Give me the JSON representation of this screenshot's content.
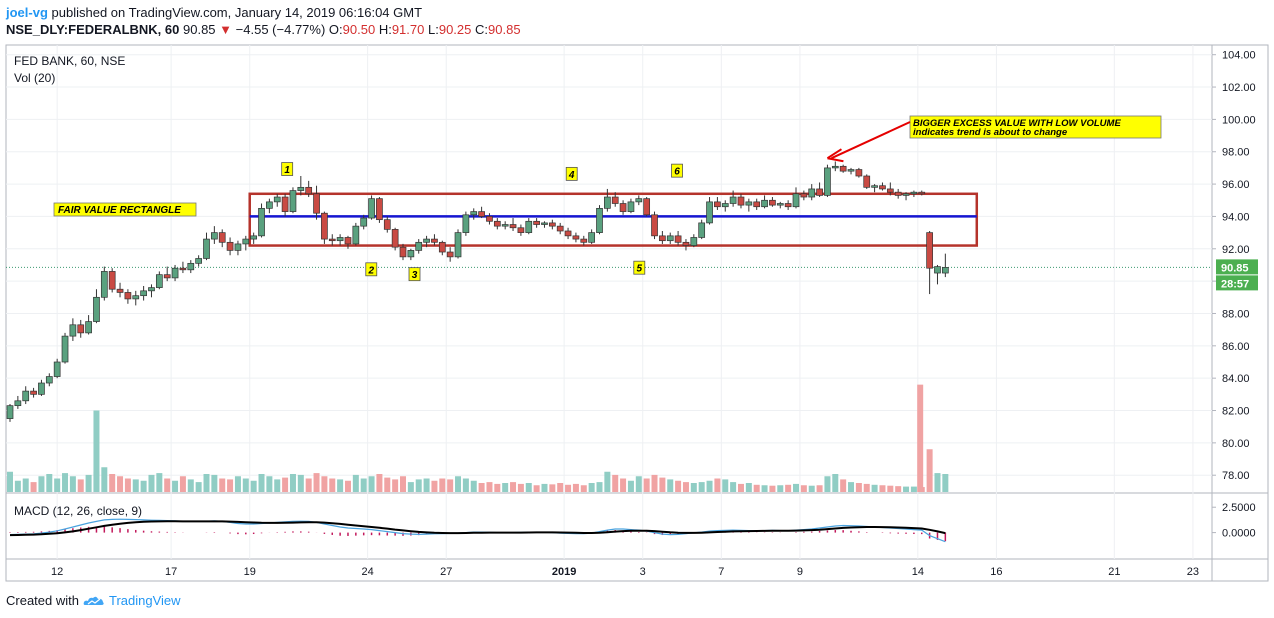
{
  "header": {
    "author": "joel-vg",
    "published_text": "published on TradingView.com, January 14, 2019 06:16:04 GMT",
    "symbol": "NSE_DLY:FEDERALBNK, 60",
    "last": "90.85",
    "change_arrow": "▼",
    "change": "−4.55 (−4.77%)",
    "o_label": "O:",
    "o_value": "90.50",
    "h_label": "H:",
    "h_value": "91.70",
    "l_label": "L:",
    "l_value": "90.25",
    "c_label": "C:",
    "c_value": "90.85"
  },
  "pane": {
    "title": "FED BANK, 60, NSE",
    "vol_label": "Vol (20)",
    "macd_label": "MACD (12, 26, close, 9)",
    "price_badge": "90.85",
    "timer_badge": "28:57"
  },
  "footer": {
    "created_with": "Created with",
    "brand": "TradingView",
    "logo_icon": "tradingview-cloud-icon"
  },
  "annotations": {
    "fair_value": "FAIR VALUE RECTANGLE",
    "callout_line1": "BIGGER EXCESS VALUE WITH LOW VOLUME",
    "callout_line2": "indicates trend is about to change",
    "markers": [
      {
        "label": "1",
        "x": 35.2,
        "y": 96.9
      },
      {
        "label": "2",
        "x": 45.9,
        "y": 90.7
      },
      {
        "label": "3",
        "x": 51.4,
        "y": 90.4
      },
      {
        "label": "4",
        "x": 71.4,
        "y": 96.6
      },
      {
        "label": "5",
        "x": 80.0,
        "y": 90.8
      },
      {
        "label": "6",
        "x": 84.8,
        "y": 96.8
      }
    ]
  },
  "colors": {
    "up": "#5aa17f",
    "down": "#c94a43",
    "vol_up": "#90cdc4",
    "vol_down": "#f0a3a3",
    "rect": "#b5332b",
    "blue_line": "#1515d1",
    "macd_line": "#4aa3df",
    "signal_line": "#000000",
    "hist": "#c2185b",
    "badge": "#4caf50",
    "note_bg": "#ffff00"
  },
  "chart_data": {
    "type": "candlestick",
    "price_ticks": [
      "104.00",
      "102.00",
      "100.00",
      "98.00",
      "96.00",
      "94.00",
      "92.00",
      "90.00",
      "88.00",
      "86.00",
      "84.00",
      "82.00",
      "80.00",
      "78.00"
    ],
    "macd_ticks": [
      "2.5000",
      "0.0000"
    ],
    "x_labels": [
      {
        "t": "12",
        "x": 6
      },
      {
        "t": "17",
        "x": 20.5
      },
      {
        "t": "19",
        "x": 30.5
      },
      {
        "t": "24",
        "x": 45.5
      },
      {
        "t": "27",
        "x": 55.5
      },
      {
        "t": "2019",
        "x": 70.5,
        "bold": true
      },
      {
        "t": "3",
        "x": 80.5
      },
      {
        "t": "7",
        "x": 90.5
      },
      {
        "t": "9",
        "x": 100.5
      },
      {
        "t": "14",
        "x": 115.5
      },
      {
        "t": "16",
        "x": 125.5
      },
      {
        "t": "21",
        "x": 140.5
      },
      {
        "t": "23",
        "x": 150.5
      }
    ],
    "ylim_price": [
      76.9,
      104.6
    ],
    "ylim_macd": [
      -2.6,
      3.9
    ],
    "rectangle": {
      "x1": 30.5,
      "x2": 123.0,
      "y1": 92.2,
      "y2": 95.4
    },
    "fair_value_line": 94.0,
    "last_price": 90.85,
    "callout_target": {
      "x": 104.0,
      "y": 97.6
    },
    "candles": [
      [
        81.5,
        82.4,
        81.3,
        82.3
      ],
      [
        82.3,
        82.9,
        82.1,
        82.6
      ],
      [
        82.6,
        83.5,
        82.4,
        83.2
      ],
      [
        83.2,
        83.4,
        82.8,
        83.0
      ],
      [
        83.0,
        83.9,
        82.9,
        83.7
      ],
      [
        83.7,
        84.3,
        83.5,
        84.1
      ],
      [
        84.1,
        85.2,
        84.0,
        85.0
      ],
      [
        85.0,
        86.8,
        84.9,
        86.6
      ],
      [
        86.6,
        87.7,
        86.3,
        87.3
      ],
      [
        87.3,
        87.6,
        86.5,
        86.8
      ],
      [
        86.8,
        87.9,
        86.7,
        87.5
      ],
      [
        87.5,
        89.5,
        87.4,
        89.0
      ],
      [
        89.0,
        90.9,
        88.8,
        90.6
      ],
      [
        90.6,
        90.8,
        89.3,
        89.5
      ],
      [
        89.5,
        89.9,
        89.0,
        89.3
      ],
      [
        89.3,
        89.5,
        88.6,
        88.9
      ],
      [
        88.9,
        89.4,
        88.5,
        89.1
      ],
      [
        89.1,
        89.7,
        88.8,
        89.4
      ],
      [
        89.4,
        89.8,
        89.0,
        89.6
      ],
      [
        89.6,
        90.6,
        89.5,
        90.4
      ],
      [
        90.4,
        90.9,
        90.0,
        90.2
      ],
      [
        90.2,
        91.0,
        90.0,
        90.8
      ],
      [
        90.8,
        91.2,
        90.5,
        90.7
      ],
      [
        90.7,
        91.3,
        90.5,
        91.1
      ],
      [
        91.1,
        91.6,
        90.9,
        91.4
      ],
      [
        91.4,
        93.0,
        91.3,
        92.6
      ],
      [
        92.6,
        93.4,
        92.3,
        93.0
      ],
      [
        93.0,
        93.2,
        92.1,
        92.4
      ],
      [
        92.4,
        92.7,
        91.6,
        91.9
      ],
      [
        91.9,
        92.5,
        91.6,
        92.3
      ],
      [
        92.3,
        92.8,
        91.9,
        92.6
      ],
      [
        92.6,
        93.0,
        92.3,
        92.8
      ],
      [
        92.8,
        94.8,
        92.7,
        94.5
      ],
      [
        94.5,
        95.1,
        94.2,
        94.9
      ],
      [
        94.9,
        95.4,
        94.6,
        95.2
      ],
      [
        95.2,
        95.4,
        94.0,
        94.3
      ],
      [
        94.3,
        95.8,
        94.2,
        95.6
      ],
      [
        95.6,
        96.5,
        95.3,
        95.8
      ],
      [
        95.8,
        96.2,
        95.2,
        95.4
      ],
      [
        95.4,
        95.9,
        93.8,
        94.2
      ],
      [
        94.2,
        94.3,
        92.3,
        92.6
      ],
      [
        92.6,
        92.9,
        92.2,
        92.5
      ],
      [
        92.5,
        92.9,
        92.2,
        92.7
      ],
      [
        92.7,
        92.8,
        92.0,
        92.3
      ],
      [
        92.3,
        93.6,
        92.2,
        93.4
      ],
      [
        93.4,
        94.1,
        93.2,
        93.9
      ],
      [
        93.9,
        95.3,
        93.8,
        95.1
      ],
      [
        95.1,
        95.2,
        93.6,
        93.8
      ],
      [
        93.8,
        94.0,
        93.0,
        93.2
      ],
      [
        93.2,
        93.3,
        91.9,
        92.1
      ],
      [
        92.1,
        92.3,
        91.3,
        91.5
      ],
      [
        91.5,
        92.0,
        91.3,
        91.9
      ],
      [
        91.9,
        92.6,
        91.7,
        92.4
      ],
      [
        92.4,
        92.8,
        92.1,
        92.6
      ],
      [
        92.6,
        92.9,
        92.2,
        92.4
      ],
      [
        92.4,
        92.5,
        91.6,
        91.8
      ],
      [
        91.8,
        92.1,
        91.2,
        91.5
      ],
      [
        91.5,
        93.2,
        91.4,
        93.0
      ],
      [
        93.0,
        94.3,
        92.8,
        94.1
      ],
      [
        94.1,
        94.5,
        93.8,
        94.3
      ],
      [
        94.3,
        94.6,
        93.9,
        94.0
      ],
      [
        94.0,
        94.2,
        93.5,
        93.7
      ],
      [
        93.7,
        93.9,
        93.2,
        93.4
      ],
      [
        93.4,
        93.7,
        93.2,
        93.5
      ],
      [
        93.5,
        93.9,
        93.1,
        93.3
      ],
      [
        93.3,
        93.5,
        92.8,
        93.0
      ],
      [
        93.0,
        93.9,
        92.9,
        93.7
      ],
      [
        93.7,
        93.9,
        93.3,
        93.5
      ],
      [
        93.5,
        93.7,
        93.3,
        93.6
      ],
      [
        93.6,
        93.8,
        93.2,
        93.4
      ],
      [
        93.4,
        93.6,
        92.9,
        93.1
      ],
      [
        93.1,
        93.3,
        92.6,
        92.8
      ],
      [
        92.8,
        93.0,
        92.4,
        92.6
      ],
      [
        92.6,
        92.8,
        92.2,
        92.4
      ],
      [
        92.4,
        93.2,
        92.3,
        93.0
      ],
      [
        93.0,
        94.7,
        92.9,
        94.5
      ],
      [
        94.5,
        95.7,
        94.3,
        95.2
      ],
      [
        95.2,
        95.5,
        94.6,
        94.8
      ],
      [
        94.8,
        95.0,
        94.1,
        94.3
      ],
      [
        94.3,
        95.1,
        94.2,
        94.9
      ],
      [
        94.9,
        95.3,
        94.7,
        95.1
      ],
      [
        95.1,
        95.2,
        94.0,
        94.1
      ],
      [
        94.1,
        94.3,
        92.6,
        92.8
      ],
      [
        92.8,
        93.1,
        92.3,
        92.5
      ],
      [
        92.5,
        93.0,
        92.3,
        92.8
      ],
      [
        92.8,
        93.1,
        92.2,
        92.4
      ],
      [
        92.4,
        92.6,
        91.9,
        92.2
      ],
      [
        92.2,
        92.9,
        92.1,
        92.7
      ],
      [
        92.7,
        93.8,
        92.6,
        93.6
      ],
      [
        93.6,
        95.2,
        93.5,
        94.9
      ],
      [
        94.9,
        95.2,
        94.4,
        94.6
      ],
      [
        94.6,
        95.0,
        94.3,
        94.8
      ],
      [
        94.8,
        95.6,
        94.6,
        95.2
      ],
      [
        95.2,
        95.4,
        94.5,
        94.7
      ],
      [
        94.7,
        95.1,
        94.3,
        94.9
      ],
      [
        94.9,
        95.1,
        94.4,
        94.6
      ],
      [
        94.6,
        95.3,
        94.5,
        95.0
      ],
      [
        95.0,
        95.2,
        94.6,
        94.7
      ],
      [
        94.7,
        94.9,
        94.5,
        94.8
      ],
      [
        94.8,
        95.0,
        94.4,
        94.6
      ],
      [
        94.6,
        95.8,
        94.5,
        95.4
      ],
      [
        95.4,
        95.6,
        95.0,
        95.2
      ],
      [
        95.2,
        96.0,
        95.0,
        95.7
      ],
      [
        95.7,
        96.1,
        95.2,
        95.3
      ],
      [
        95.3,
        97.2,
        95.2,
        97.0
      ],
      [
        97.0,
        97.4,
        96.8,
        97.1
      ],
      [
        97.1,
        97.2,
        96.7,
        96.8
      ],
      [
        96.8,
        97.0,
        96.6,
        96.9
      ],
      [
        96.9,
        97.0,
        96.4,
        96.5
      ],
      [
        96.5,
        96.6,
        95.7,
        95.8
      ],
      [
        95.8,
        96.0,
        95.5,
        95.9
      ],
      [
        95.9,
        96.1,
        95.6,
        95.7
      ],
      [
        95.7,
        96.1,
        95.3,
        95.5
      ],
      [
        95.5,
        95.7,
        95.1,
        95.3
      ],
      [
        95.3,
        95.5,
        95.0,
        95.4
      ],
      [
        95.4,
        95.6,
        95.2,
        95.5
      ],
      [
        95.5,
        95.6,
        95.3,
        95.4
      ],
      [
        93.0,
        93.1,
        89.2,
        90.8
      ],
      [
        90.5,
        91.0,
        89.8,
        90.9
      ],
      [
        90.5,
        91.7,
        90.25,
        90.85
      ]
    ],
    "volume_scale_note": "relative",
    "volumes": [
      0.45,
      0.25,
      0.3,
      0.22,
      0.35,
      0.4,
      0.3,
      0.42,
      0.35,
      0.28,
      0.38,
      0.45,
      0.55,
      0.4,
      0.35,
      0.3,
      0.28,
      0.25,
      0.38,
      0.42,
      0.3,
      0.25,
      0.35,
      0.28,
      0.22,
      0.4,
      0.38,
      0.3,
      0.28,
      0.35,
      0.3,
      0.25,
      0.4,
      0.35,
      0.28,
      0.32,
      0.4,
      0.38,
      0.3,
      0.42,
      0.35,
      0.3,
      0.28,
      0.25,
      0.38,
      0.3,
      0.35,
      0.4,
      0.32,
      0.28,
      0.35,
      0.22,
      0.28,
      0.3,
      0.25,
      0.3,
      0.28,
      0.35,
      0.3,
      0.25,
      0.2,
      0.22,
      0.18,
      0.2,
      0.22,
      0.18,
      0.2,
      0.15,
      0.18,
      0.17,
      0.2,
      0.16,
      0.18,
      0.15,
      0.2,
      0.22,
      0.45,
      0.38,
      0.3,
      0.25,
      0.35,
      0.3,
      0.38,
      0.32,
      0.28,
      0.25,
      0.22,
      0.2,
      0.22,
      0.25,
      0.3,
      0.28,
      0.22,
      0.18,
      0.2,
      0.16,
      0.15,
      0.14,
      0.15,
      0.16,
      0.18,
      0.15,
      0.14,
      0.15,
      0.35,
      0.4,
      0.28,
      0.22,
      0.2,
      0.18,
      0.16,
      0.15,
      0.14,
      0.13,
      0.12,
      0.12,
      0.11,
      0.95,
      0.42,
      0.4
    ],
    "volume_spike": {
      "value": 83.6,
      "x": 115.8
    },
    "volume_outlier": {
      "value": 82.0,
      "x": 11.0
    },
    "macd": [
      -0.2,
      -0.18,
      -0.15,
      -0.12,
      -0.05,
      0.05,
      0.18,
      0.35,
      0.55,
      0.75,
      0.95,
      1.1,
      1.25,
      1.3,
      1.32,
      1.3,
      1.28,
      1.25,
      1.22,
      1.2,
      1.18,
      1.15,
      1.12,
      1.1,
      1.1,
      1.12,
      1.15,
      1.1,
      1.0,
      0.9,
      0.85,
      0.85,
      0.9,
      0.95,
      1.0,
      1.05,
      1.1,
      1.12,
      1.1,
      1.0,
      0.85,
      0.7,
      0.55,
      0.45,
      0.4,
      0.35,
      0.3,
      0.2,
      0.1,
      0.0,
      -0.1,
      -0.15,
      -0.18,
      -0.15,
      -0.12,
      -0.1,
      -0.08,
      -0.05,
      0.0,
      0.05,
      0.05,
      0.02,
      0.0,
      -0.02,
      0.0,
      0.02,
      0.05,
      0.05,
      0.03,
      0.0,
      -0.05,
      -0.08,
      -0.1,
      -0.1,
      -0.05,
      0.1,
      0.25,
      0.35,
      0.35,
      0.3,
      0.25,
      0.15,
      0.0,
      -0.15,
      -0.2,
      -0.18,
      -0.1,
      -0.02,
      0.05,
      0.15,
      0.2,
      0.22,
      0.25,
      0.22,
      0.2,
      0.18,
      0.2,
      0.22,
      0.2,
      0.18,
      0.25,
      0.3,
      0.35,
      0.45,
      0.55,
      0.65,
      0.7,
      0.68,
      0.65,
      0.6,
      0.55,
      0.5,
      0.45,
      0.4,
      0.35,
      0.3,
      0.25,
      -0.3,
      -0.6,
      -0.9
    ],
    "signal": [
      -0.25,
      -0.24,
      -0.22,
      -0.2,
      -0.17,
      -0.12,
      -0.06,
      0.02,
      0.12,
      0.25,
      0.38,
      0.52,
      0.66,
      0.78,
      0.88,
      0.96,
      1.02,
      1.06,
      1.09,
      1.1,
      1.11,
      1.11,
      1.1,
      1.1,
      1.1,
      1.1,
      1.1,
      1.1,
      1.08,
      1.05,
      1.02,
      0.99,
      0.97,
      0.96,
      0.96,
      0.97,
      0.98,
      1.0,
      1.01,
      1.01,
      0.98,
      0.93,
      0.86,
      0.78,
      0.7,
      0.62,
      0.55,
      0.47,
      0.39,
      0.3,
      0.22,
      0.14,
      0.07,
      0.02,
      -0.02,
      -0.04,
      -0.05,
      -0.05,
      -0.04,
      -0.02,
      -0.01,
      0.0,
      0.0,
      0.0,
      0.0,
      0.0,
      0.01,
      0.02,
      0.02,
      0.02,
      0.01,
      0.0,
      -0.02,
      -0.04,
      -0.04,
      -0.01,
      0.04,
      0.1,
      0.15,
      0.18,
      0.19,
      0.18,
      0.15,
      0.09,
      0.03,
      -0.01,
      -0.03,
      -0.03,
      -0.01,
      0.02,
      0.06,
      0.09,
      0.12,
      0.14,
      0.15,
      0.16,
      0.17,
      0.18,
      0.18,
      0.18,
      0.2,
      0.22,
      0.25,
      0.29,
      0.34,
      0.4,
      0.46,
      0.5,
      0.53,
      0.55,
      0.55,
      0.54,
      0.52,
      0.5,
      0.47,
      0.44,
      0.4,
      0.28,
      0.12,
      -0.05
    ]
  }
}
